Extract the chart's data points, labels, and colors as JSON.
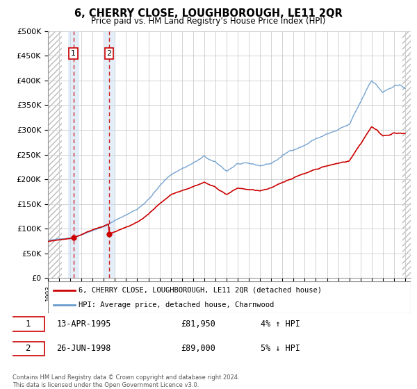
{
  "title": "6, CHERRY CLOSE, LOUGHBOROUGH, LE11 2QR",
  "subtitle": "Price paid vs. HM Land Registry’s House Price Index (HPI)",
  "legend_line1": "6, CHERRY CLOSE, LOUGHBOROUGH, LE11 2QR (detached house)",
  "legend_line2": "HPI: Average price, detached house, Charnwood",
  "transaction1_date": "13-APR-1995",
  "transaction1_price": "£81,950",
  "transaction1_hpi": "4% ↑ HPI",
  "transaction2_date": "26-JUN-1998",
  "transaction2_price": "£89,000",
  "transaction2_hpi": "5% ↓ HPI",
  "footer": "Contains HM Land Registry data © Crown copyright and database right 2024.\nThis data is licensed under the Open Government Licence v3.0.",
  "sale1_year": 1995.28,
  "sale1_price": 81950,
  "sale2_year": 1998.48,
  "sale2_price": 89000,
  "red_color": "#cc0000",
  "blue_color": "#6699cc",
  "grid_color": "#cccccc",
  "ylim": [
    0,
    500000
  ],
  "xlim": [
    1993.0,
    2025.5
  ]
}
